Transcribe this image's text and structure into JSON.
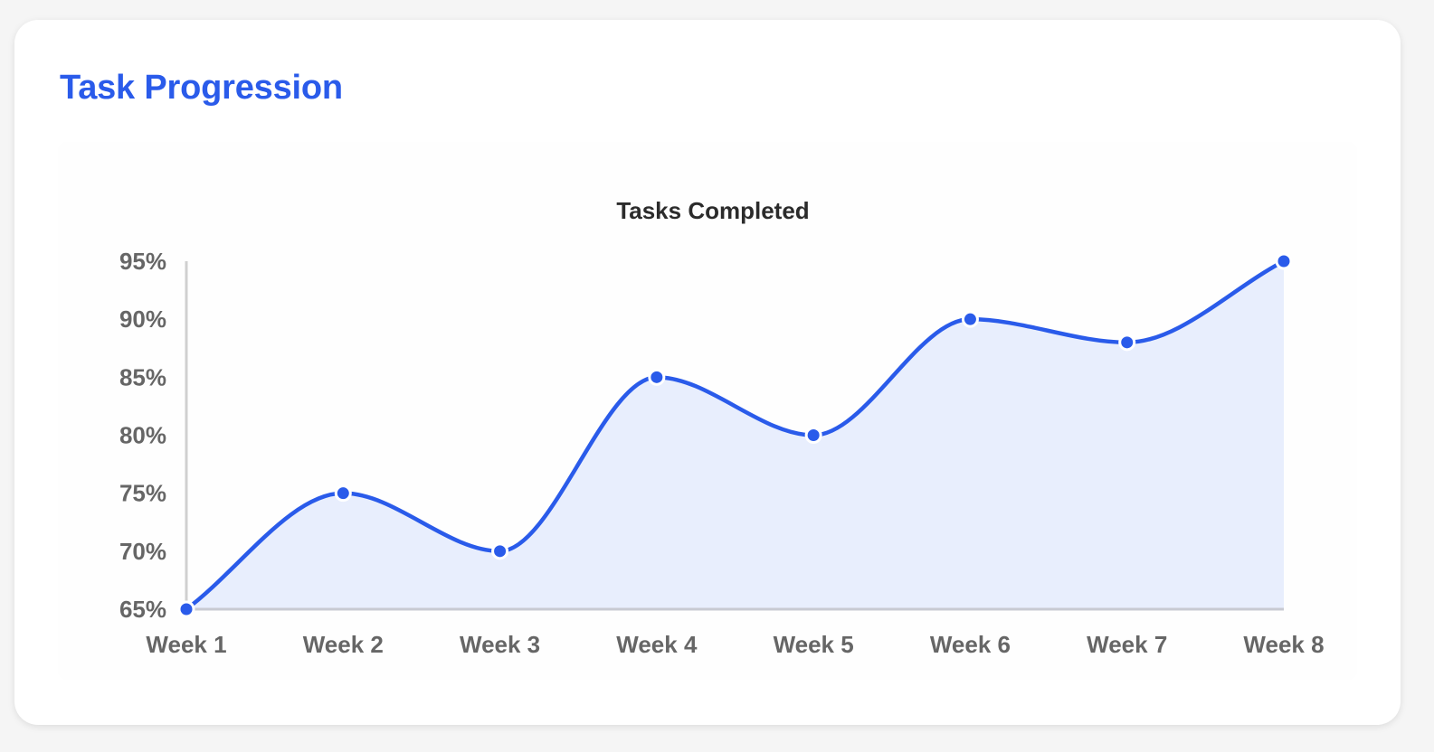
{
  "card": {
    "title": "Task Progression"
  },
  "colors": {
    "accent": "#2a5bea",
    "area_fill": "#e8eefd",
    "axis": "#c8cad2",
    "tick_text": "#666666"
  },
  "chart_data": {
    "type": "line",
    "title": "Tasks Completed",
    "xlabel": "",
    "ylabel": "",
    "categories": [
      "Week 1",
      "Week 2",
      "Week 3",
      "Week 4",
      "Week 5",
      "Week 6",
      "Week 7",
      "Week 8"
    ],
    "series": [
      {
        "values": [
          65,
          75,
          70,
          85,
          80,
          90,
          88,
          95
        ]
      }
    ],
    "ylim": [
      65,
      95
    ],
    "y_ticks": [
      95,
      90,
      85,
      80,
      75,
      70,
      65
    ],
    "y_tick_labels": [
      "95%",
      "90%",
      "85%",
      "80%",
      "75%",
      "70%",
      "65%"
    ],
    "curve": "smooth",
    "area_filled": true,
    "grid": false,
    "legend": "none"
  }
}
